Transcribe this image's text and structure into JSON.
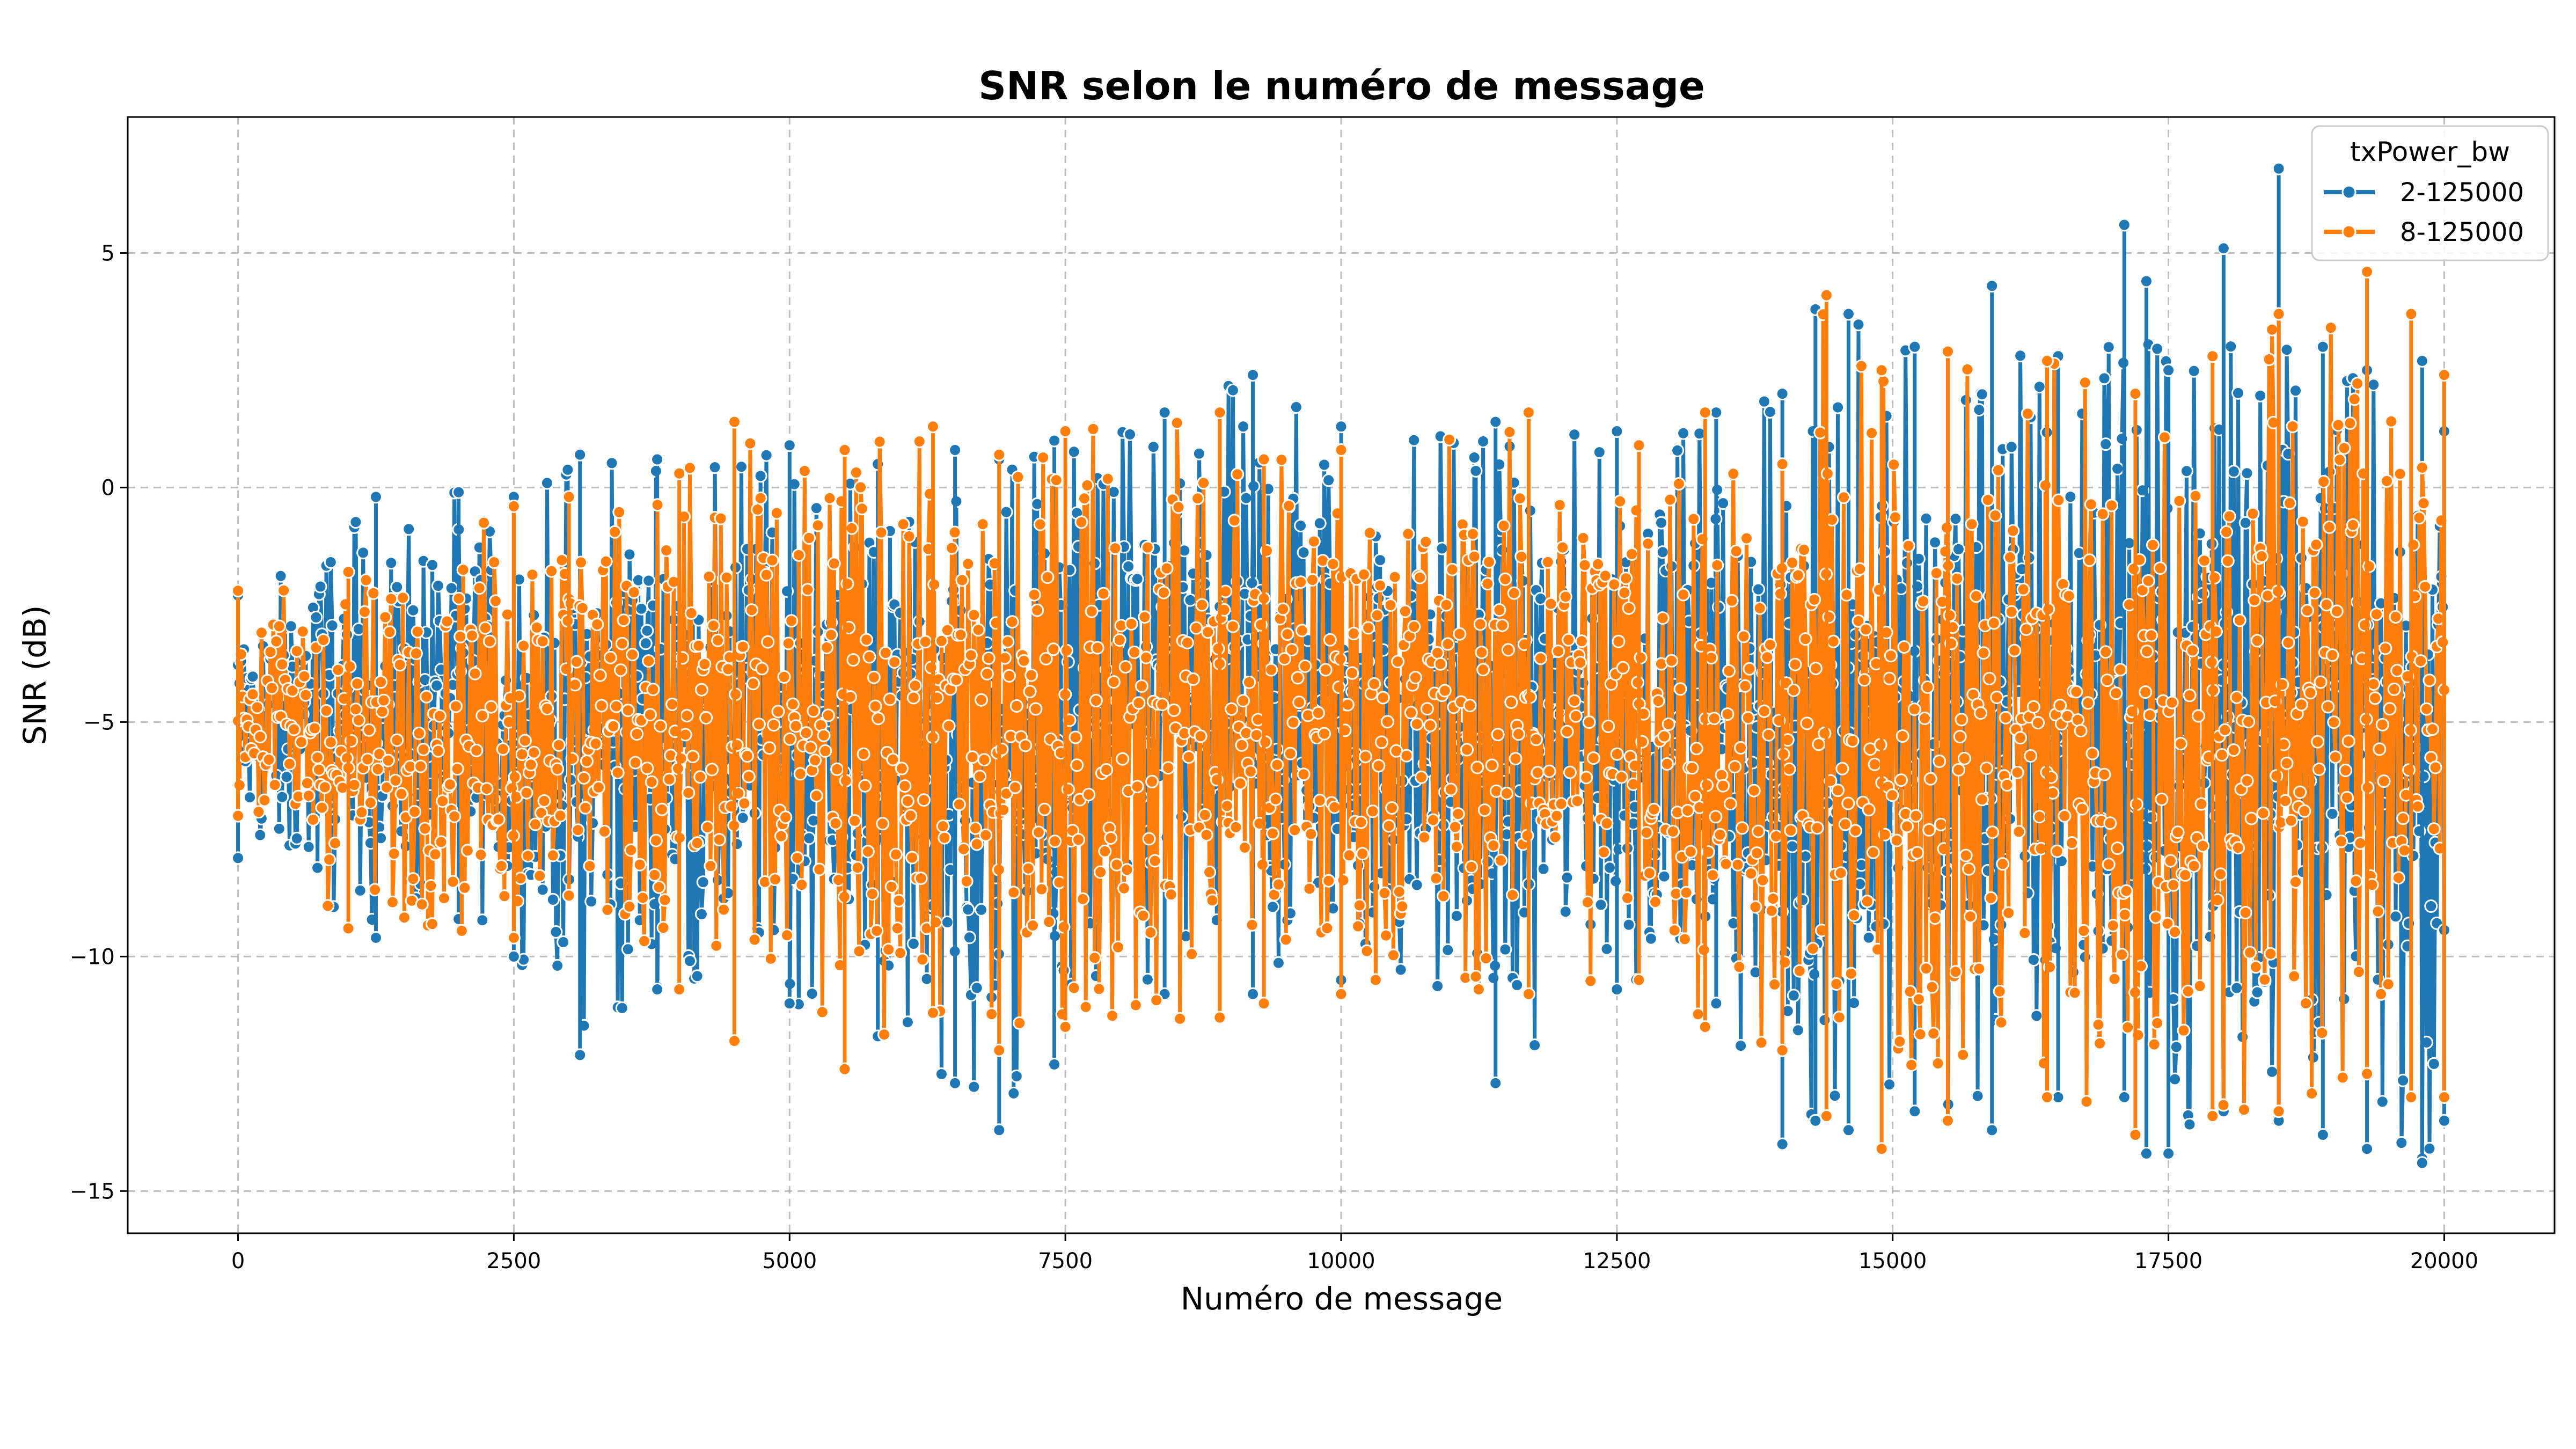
{
  "chart_data": {
    "type": "line",
    "title": "SNR selon le numéro de message",
    "xlabel": "Numéro de message",
    "ylabel": "SNR (dB)",
    "xlim": [
      -1000,
      21000
    ],
    "ylim": [
      -15.9,
      7.9
    ],
    "xticks": [
      0,
      2500,
      5000,
      7500,
      10000,
      12500,
      15000,
      17500,
      20000
    ],
    "xtick_labels": [
      "0",
      "2500",
      "5000",
      "7500",
      "10000",
      "12500",
      "15000",
      "17500",
      "20000"
    ],
    "yticks": [
      5,
      0,
      -5,
      -10,
      -15
    ],
    "ytick_labels": [
      "5",
      "0",
      "−5",
      "−10",
      "−15"
    ],
    "grid": true,
    "legend": {
      "title": "txPower_bw",
      "placement": "top-right",
      "entries": [
        "2-125000",
        "8-125000"
      ]
    },
    "series": [
      {
        "name": "2-125000",
        "color": "#1f77b4",
        "marker": "circle",
        "x_range": [
          0,
          20000
        ],
        "x": [
          0,
          1250,
          2000,
          2500,
          3100,
          3800,
          5000,
          5800,
          6500,
          6900,
          7400,
          8400,
          9200,
          10000,
          11400,
          12500,
          13400,
          14000,
          14300,
          14600,
          15200,
          15900,
          16500,
          17100,
          17300,
          17500,
          18000,
          18500,
          18900,
          19300,
          19800,
          20000
        ],
        "y_max": [
          -2.3,
          -0.2,
          -0.1,
          -0.2,
          0.7,
          0.6,
          0.9,
          0.5,
          0.8,
          0.6,
          1.0,
          1.6,
          2.4,
          1.3,
          1.4,
          1.2,
          1.6,
          2.0,
          3.8,
          3.7,
          3.0,
          4.3,
          2.8,
          5.6,
          4.4,
          2.5,
          5.1,
          6.8,
          3.0,
          2.5,
          2.7,
          1.2
        ],
        "y_min": [
          -7.9,
          -9.6,
          -9.2,
          -10.0,
          -12.1,
          -10.7,
          -11.0,
          -11.7,
          -12.7,
          -13.7,
          -12.3,
          -10.8,
          -10.8,
          -10.5,
          -12.7,
          -10.7,
          -11.0,
          -14.0,
          -13.5,
          -13.7,
          -13.3,
          -13.7,
          -13.0,
          -13.0,
          -14.2,
          -14.2,
          -13.3,
          -13.5,
          -13.8,
          -14.1,
          -14.4,
          -13.5
        ]
      },
      {
        "name": "8-125000",
        "color": "#ff7f0e",
        "marker": "circle",
        "x_range": [
          0,
          20000
        ],
        "x": [
          0,
          1000,
          2500,
          3000,
          4000,
          4500,
          5500,
          6300,
          6900,
          7500,
          8900,
          9300,
          10000,
          11700,
          12700,
          13300,
          14000,
          14400,
          14900,
          15500,
          16400,
          17200,
          17900,
          18500,
          19300,
          19700,
          20000
        ],
        "y_max": [
          -2.2,
          -1.8,
          -0.4,
          -0.2,
          0.3,
          1.4,
          0.8,
          1.3,
          0.7,
          1.2,
          1.6,
          0.6,
          0.8,
          1.6,
          0.9,
          1.6,
          0.5,
          4.1,
          2.5,
          2.9,
          2.7,
          2.0,
          2.8,
          3.7,
          4.6,
          3.7,
          2.4
        ],
        "y_min": [
          -7.0,
          -9.4,
          -9.6,
          -8.7,
          -10.7,
          -11.8,
          -12.4,
          -11.2,
          -12.0,
          -11.5,
          -11.3,
          -11.0,
          -10.8,
          -10.8,
          -10.5,
          -11.5,
          -12.0,
          -13.4,
          -14.1,
          -13.5,
          -13.0,
          -13.8,
          -13.4,
          -13.3,
          -12.5,
          -13.0,
          -13.0
        ]
      }
    ]
  }
}
